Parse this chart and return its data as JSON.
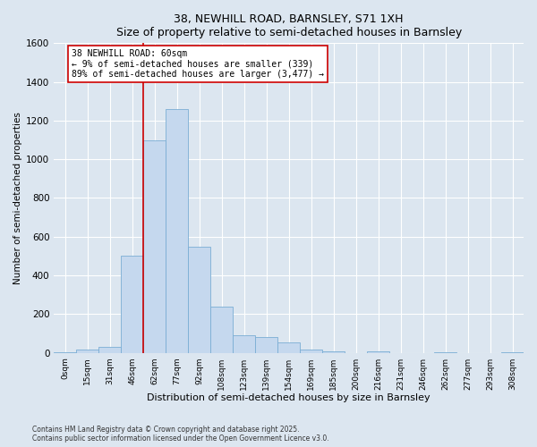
{
  "title1": "38, NEWHILL ROAD, BARNSLEY, S71 1XH",
  "title2": "Size of property relative to semi-detached houses in Barnsley",
  "xlabel": "Distribution of semi-detached houses by size in Barnsley",
  "ylabel": "Number of semi-detached properties",
  "bin_labels": [
    "0sqm",
    "15sqm",
    "31sqm",
    "46sqm",
    "62sqm",
    "77sqm",
    "92sqm",
    "108sqm",
    "123sqm",
    "139sqm",
    "154sqm",
    "169sqm",
    "185sqm",
    "200sqm",
    "216sqm",
    "231sqm",
    "246sqm",
    "262sqm",
    "277sqm",
    "293sqm",
    "308sqm"
  ],
  "bar_heights": [
    3,
    15,
    30,
    500,
    1100,
    1260,
    550,
    240,
    90,
    80,
    55,
    15,
    8,
    0,
    8,
    0,
    0,
    3,
    0,
    0,
    3
  ],
  "bar_color": "#c5d8ee",
  "bar_edge_color": "#7aadd4",
  "property_line_bin_index": 4,
  "property_line_color": "#cc0000",
  "annotation_text": "38 NEWHILL ROAD: 60sqm\n← 9% of semi-detached houses are smaller (339)\n89% of semi-detached houses are larger (3,477) →",
  "annotation_box_color": "#ffffff",
  "annotation_box_edge": "#cc0000",
  "footnote1": "Contains HM Land Registry data © Crown copyright and database right 2025.",
  "footnote2": "Contains public sector information licensed under the Open Government Licence v3.0.",
  "background_color": "#dce6f0",
  "plot_background": "#dce6f0",
  "ylim": [
    0,
    1600
  ],
  "yticks": [
    0,
    200,
    400,
    600,
    800,
    1000,
    1200,
    1400,
    1600
  ]
}
